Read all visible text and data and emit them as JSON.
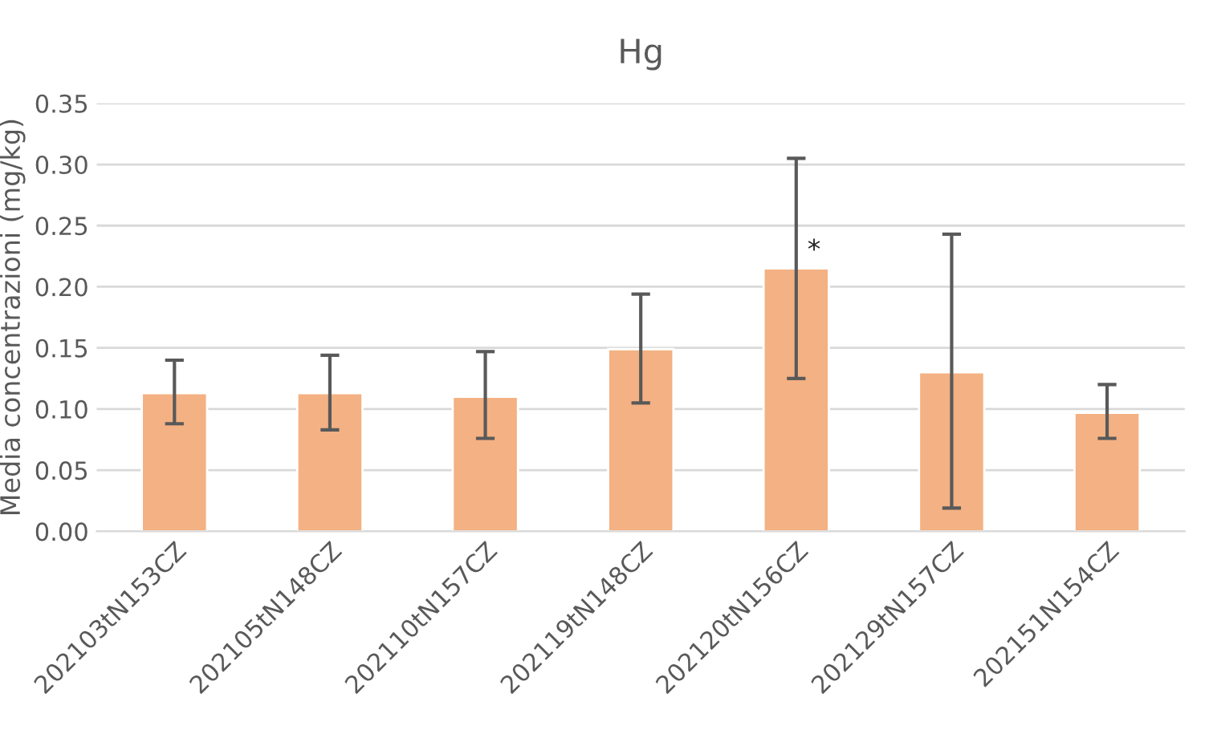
{
  "chart_data": {
    "type": "bar",
    "title": "Hg",
    "ylabel": "Media concentrazioni (mg/kg)",
    "categories": [
      "202103tN153CZ",
      "202105tN148CZ",
      "202110tN157CZ",
      "202119tN148CZ",
      "202120tN156CZ",
      "202129tN157CZ",
      "202151N154CZ"
    ],
    "values": [
      0.113,
      0.113,
      0.11,
      0.149,
      0.215,
      0.13,
      0.097
    ],
    "errors": [
      [
        0.088,
        0.14
      ],
      [
        0.083,
        0.144
      ],
      [
        0.076,
        0.147
      ],
      [
        0.105,
        0.194
      ],
      [
        0.125,
        0.305
      ],
      [
        0.019,
        0.243
      ],
      [
        0.076,
        0.12
      ]
    ],
    "color": "#f4b183",
    "ylim": [
      0,
      0.35
    ],
    "yticks": [
      {
        "value": 0,
        "label": "0.00"
      },
      {
        "value": 0.05,
        "label": "0.05"
      },
      {
        "value": 0.1,
        "label": "0.10"
      },
      {
        "value": 0.15,
        "label": "0.15"
      },
      {
        "value": 0.2,
        "label": "0.20"
      },
      {
        "value": 0.25,
        "label": "0.25"
      },
      {
        "value": 0.3,
        "label": "0.30"
      },
      {
        "value": 0.35,
        "label": "0.35"
      }
    ],
    "grid": "y",
    "annotations": [
      {
        "text": "*",
        "x": "202120tN156CZ",
        "y": 0.215
      }
    ]
  }
}
